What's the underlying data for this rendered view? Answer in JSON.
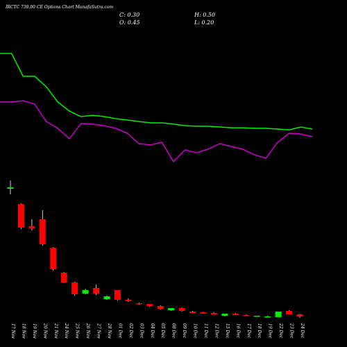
{
  "chart_data": {
    "type": "candlestick",
    "title": "IRCTC 730.00 CE Options Chart MunafaSutra.com",
    "header_stats": [
      "C: 0.30",
      "H: 0.50",
      "O: 0.45",
      "L: 0.20"
    ],
    "categories": [
      "17 Nov",
      "18 Nov",
      "19 Nov",
      "20 Nov",
      "21 Nov",
      "24 Nov",
      "25 Nov",
      "26 Nov",
      "27 Nov",
      "28 Nov",
      "01 Dec",
      "02 Dec",
      "03 Dec",
      "04 Dec",
      "05 Dec",
      "08 Dec",
      "09 Dec",
      "10 Dec",
      "11 Dec",
      "12 Dec",
      "15 Dec",
      "16 Dec",
      "17 Dec",
      "18 Dec",
      "19 Dec",
      "22 Dec",
      "23 Dec",
      "24 Dec"
    ],
    "open": [
      9.5,
      8.4,
      6.8,
      7.3,
      5.25,
      3.45,
      2.75,
      1.95,
      2.35,
      1.55,
      2.2,
      1.5,
      1.25,
      1.2,
      1.05,
      0.75,
      0.9,
      0.65,
      0.6,
      0.55,
      0.35,
      0.5,
      0.4,
      0.3,
      0.3,
      0.25,
      0.7,
      0.45
    ],
    "high": [
      10.1,
      8.45,
      7.3,
      7.95,
      5.3,
      3.5,
      2.8,
      2.3,
      2.6,
      1.8,
      2.2,
      1.6,
      1.3,
      1.2,
      1.1,
      0.9,
      0.95,
      0.7,
      0.65,
      0.6,
      0.5,
      0.55,
      0.45,
      0.35,
      0.35,
      0.65,
      0.75,
      0.5
    ],
    "low": [
      9.1,
      6.6,
      6.5,
      5.4,
      3.6,
      2.7,
      1.8,
      1.9,
      1.85,
      1.5,
      1.45,
      1.35,
      1.15,
      1.0,
      0.8,
      0.7,
      0.65,
      0.55,
      0.5,
      0.45,
      0.3,
      0.4,
      0.35,
      0.3,
      0.25,
      0.25,
      0.45,
      0.2
    ],
    "close": [
      9.6,
      6.7,
      6.65,
      5.5,
      3.7,
      2.75,
      1.9,
      2.2,
      1.95,
      1.75,
      1.5,
      1.4,
      1.2,
      1.05,
      0.85,
      0.9,
      0.7,
      0.55,
      0.5,
      0.45,
      0.5,
      0.4,
      0.35,
      0.35,
      0.3,
      0.65,
      0.45,
      0.3
    ],
    "up_color": "#00ee00",
    "down_color": "#ff0000",
    "moving_averages": [
      {
        "color": "#00ee00",
        "values": [
          10.87,
          10.87,
          8.67,
          8.67,
          7.67,
          6.2,
          5.33,
          4.8,
          4.93,
          4.8,
          4.6,
          4.47,
          4.33,
          4.2,
          4.2,
          4.07,
          3.93,
          3.87,
          3.87,
          3.8,
          3.73,
          3.73,
          3.67,
          3.67,
          3.6,
          3.53,
          3.8,
          3.6
        ]
      },
      {
        "color": "#cc00cc",
        "values": [
          6.2,
          6.2,
          6.33,
          6.0,
          4.33,
          3.67,
          2.67,
          4.13,
          4.07,
          3.93,
          3.67,
          3.2,
          2.2,
          2.07,
          2.33,
          0.47,
          1.6,
          1.33,
          1.67,
          2.2,
          1.93,
          1.67,
          1.13,
          0.8,
          2.33,
          3.2,
          3.13,
          2.87
        ]
      }
    ]
  }
}
